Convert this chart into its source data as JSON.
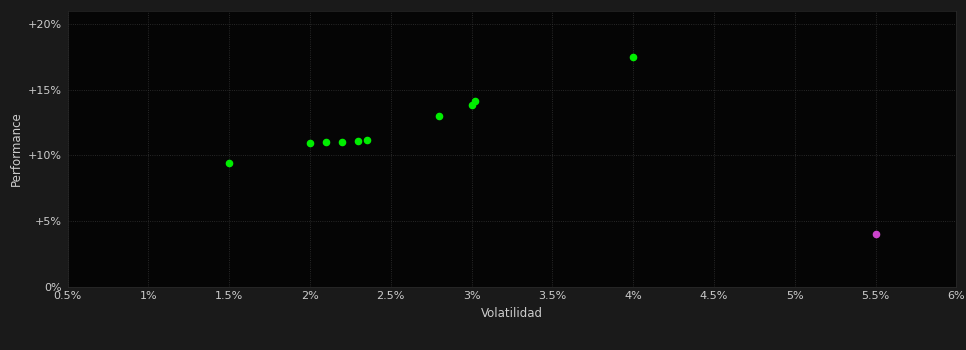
{
  "background_color": "#1a1a1a",
  "plot_bg_color": "#050505",
  "grid_color": "#333333",
  "grid_style": ":",
  "xlabel": "Volatilidad",
  "ylabel": "Performance",
  "xlabel_color": "#cccccc",
  "ylabel_color": "#cccccc",
  "tick_color": "#cccccc",
  "xlim": [
    0.005,
    0.06
  ],
  "ylim": [
    0.0,
    0.21
  ],
  "xticks": [
    0.005,
    0.01,
    0.015,
    0.02,
    0.025,
    0.03,
    0.035,
    0.04,
    0.045,
    0.05,
    0.055,
    0.06
  ],
  "yticks": [
    0.0,
    0.05,
    0.1,
    0.15,
    0.2
  ],
  "green_points": [
    [
      0.015,
      0.094
    ],
    [
      0.02,
      0.109
    ],
    [
      0.021,
      0.11
    ],
    [
      0.022,
      0.1105
    ],
    [
      0.023,
      0.111
    ],
    [
      0.0235,
      0.112
    ],
    [
      0.028,
      0.13
    ],
    [
      0.03,
      0.138
    ],
    [
      0.0302,
      0.141
    ],
    [
      0.04,
      0.175
    ]
  ],
  "magenta_points": [
    [
      0.055,
      0.04
    ]
  ],
  "point_size": 20,
  "green_color": "#00ee00",
  "magenta_color": "#cc44cc",
  "border_color": "#2a2a2a"
}
